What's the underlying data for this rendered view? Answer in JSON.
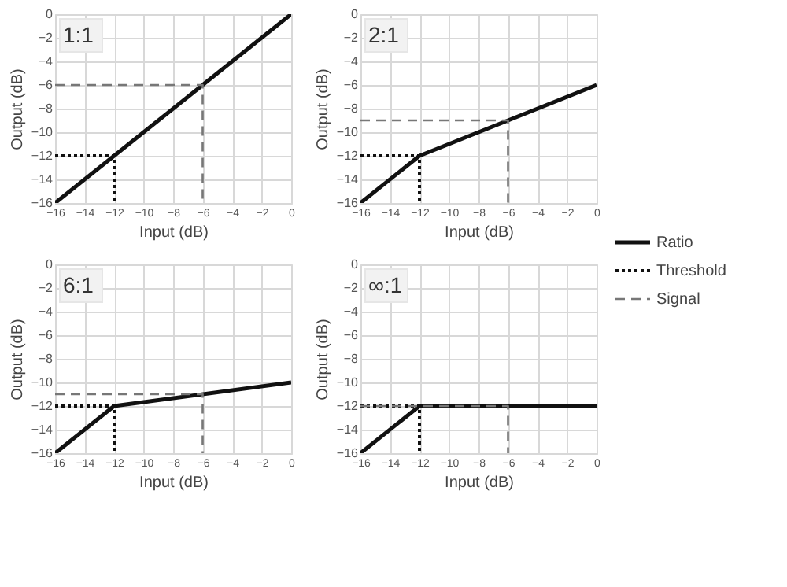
{
  "chart_data": [
    {
      "type": "line",
      "title": "1:1",
      "xlabel": "Input (dB)",
      "ylabel": "Output (dB)",
      "xlim": [
        -16,
        0
      ],
      "ylim": [
        -16,
        0
      ],
      "xticks": [
        -16,
        -14,
        -12,
        -10,
        -8,
        -6,
        -4,
        -2,
        0
      ],
      "yticks": [
        0,
        -2,
        -4,
        -6,
        -8,
        -10,
        -12,
        -14,
        -16
      ],
      "grid": true,
      "legend": "right",
      "series": [
        {
          "name": "Ratio",
          "color": "#111111",
          "line_style": "solid",
          "x": [
            -16,
            -12,
            0
          ],
          "values": [
            -16,
            -12,
            0
          ]
        },
        {
          "name": "Threshold",
          "color": "#111111",
          "line_style": "dotted",
          "x": [
            -16,
            -12,
            -12
          ],
          "values": [
            -12,
            -12,
            -16
          ]
        },
        {
          "name": "Signal",
          "color": "#777777",
          "line_style": "dashed",
          "x": [
            -16,
            -6,
            -6
          ],
          "values": [
            -6,
            -6,
            -16
          ]
        }
      ]
    },
    {
      "type": "line",
      "title": "2:1",
      "xlabel": "Input (dB)",
      "ylabel": "Output (dB)",
      "xlim": [
        -16,
        0
      ],
      "ylim": [
        -16,
        0
      ],
      "xticks": [
        -16,
        -14,
        -12,
        -10,
        -8,
        -6,
        -4,
        -2,
        0
      ],
      "yticks": [
        0,
        -2,
        -4,
        -6,
        -8,
        -10,
        -12,
        -14,
        -16
      ],
      "grid": true,
      "series": [
        {
          "color": "#111111",
          "line_style": "solid",
          "x": [
            -16,
            -12,
            0
          ],
          "values": [
            -16,
            -12,
            -6
          ]
        },
        {
          "color": "#111111",
          "line_style": "dotted",
          "x": [
            -16,
            -12,
            -12
          ],
          "values": [
            -12,
            -12,
            -16
          ]
        },
        {
          "color": "#777777",
          "line_style": "dashed",
          "x": [
            -16,
            -6,
            -6
          ],
          "values": [
            -9,
            -9,
            -16
          ]
        }
      ]
    },
    {
      "type": "line",
      "title": "6:1",
      "xlabel": "Input (dB)",
      "ylabel": "Output (dB)",
      "xlim": [
        -16,
        0
      ],
      "ylim": [
        -16,
        0
      ],
      "xticks": [
        -16,
        -14,
        -12,
        -10,
        -8,
        -6,
        -4,
        -2,
        0
      ],
      "yticks": [
        0,
        -2,
        -4,
        -6,
        -8,
        -10,
        -12,
        -14,
        -16
      ],
      "grid": true,
      "series": [
        {
          "color": "#111111",
          "line_style": "solid",
          "x": [
            -16,
            -12,
            0
          ],
          "values": [
            -16,
            -12,
            -10
          ]
        },
        {
          "color": "#111111",
          "line_style": "dotted",
          "x": [
            -16,
            -12,
            -12
          ],
          "values": [
            -12,
            -12,
            -16
          ]
        },
        {
          "color": "#777777",
          "line_style": "dashed",
          "x": [
            -16,
            -6,
            -6
          ],
          "values": [
            -11,
            -11,
            -16
          ]
        }
      ]
    },
    {
      "type": "line",
      "title": "∞:1",
      "xlabel": "Input (dB)",
      "ylabel": "Output (dB)",
      "xlim": [
        -16,
        0
      ],
      "ylim": [
        -16,
        0
      ],
      "xticks": [
        -16,
        -14,
        -12,
        -10,
        -8,
        -6,
        -4,
        -2,
        0
      ],
      "yticks": [
        0,
        -2,
        -4,
        -6,
        -8,
        -10,
        -12,
        -14,
        -16
      ],
      "grid": true,
      "series": [
        {
          "color": "#111111",
          "line_style": "solid",
          "x": [
            -16,
            -12,
            0
          ],
          "values": [
            -16,
            -12,
            -12
          ]
        },
        {
          "color": "#111111",
          "line_style": "dotted",
          "x": [
            -16,
            -12,
            -12
          ],
          "values": [
            -12,
            -12,
            -16
          ]
        },
        {
          "color": "#777777",
          "line_style": "dashed",
          "x": [
            -16,
            -6,
            -6
          ],
          "values": [
            -12,
            -12,
            -16
          ]
        }
      ]
    }
  ]
}
